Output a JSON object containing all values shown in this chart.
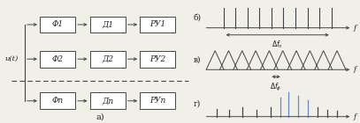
{
  "fig_width": 4.07,
  "fig_height": 1.4,
  "dpi": 100,
  "bg_color": "#f0efe8",
  "box_color": "#ffffff",
  "box_edge_color": "#444444",
  "line_color": "#444444",
  "text_color": "#222222",
  "highlight_color": "#6688cc",
  "row1_labels": [
    "Φ1",
    "Д1",
    "РУ1"
  ],
  "row2_labels": [
    "Φ2",
    "Д2",
    "РУ2"
  ],
  "row3_labels": [
    "Φn",
    "Дn",
    "РУn"
  ],
  "input_label": "u(t)",
  "panel_a_label": "а)",
  "right_labels": [
    "б)",
    "в)",
    "г)"
  ],
  "freq_label": "f",
  "delta_fn_label": "Δf_n",
  "delta_fphi_label": "Δf_Φ"
}
